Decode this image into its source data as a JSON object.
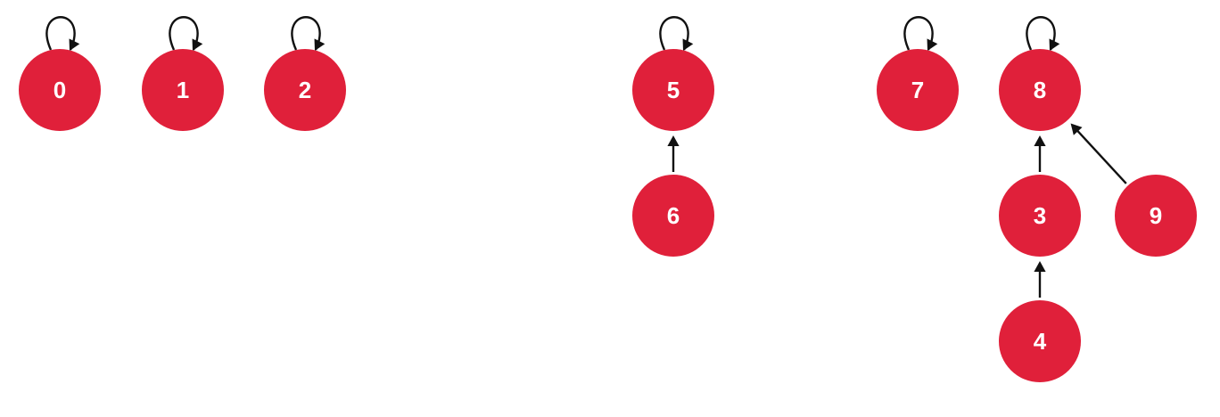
{
  "diagram": {
    "node_color": "#e0203a",
    "label_color": "#ffffff",
    "edge_color": "#111111",
    "nodes": [
      {
        "id": "0",
        "label": "0"
      },
      {
        "id": "1",
        "label": "1"
      },
      {
        "id": "2",
        "label": "2"
      },
      {
        "id": "5",
        "label": "5"
      },
      {
        "id": "6",
        "label": "6"
      },
      {
        "id": "7",
        "label": "7"
      },
      {
        "id": "8",
        "label": "8"
      },
      {
        "id": "3",
        "label": "3"
      },
      {
        "id": "9",
        "label": "9"
      },
      {
        "id": "4",
        "label": "4"
      }
    ],
    "self_loops": [
      "0",
      "1",
      "2",
      "5",
      "7",
      "8"
    ],
    "edges": [
      {
        "from": "6",
        "to": "5"
      },
      {
        "from": "3",
        "to": "8"
      },
      {
        "from": "9",
        "to": "8"
      },
      {
        "from": "4",
        "to": "3"
      }
    ]
  }
}
